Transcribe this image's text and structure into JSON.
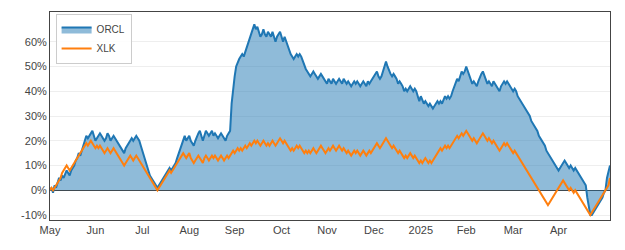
{
  "chart_data": {
    "type": "line",
    "categories": [
      "May",
      null,
      null,
      null,
      null,
      null,
      null,
      null,
      null,
      null,
      null,
      null,
      null,
      null,
      null,
      null,
      null,
      null,
      null,
      null,
      null,
      null,
      null,
      null,
      null,
      null,
      null,
      null,
      null,
      null,
      "Jun",
      null,
      null,
      null,
      null,
      null,
      null,
      null,
      null,
      null,
      null,
      null,
      null,
      null,
      null,
      null,
      null,
      null,
      null,
      null,
      null,
      null,
      null,
      null,
      null,
      null,
      null,
      null,
      null,
      null,
      null,
      "Jul",
      null,
      null,
      null,
      null,
      null,
      null,
      null,
      null,
      null,
      null,
      null,
      null,
      null,
      null,
      null,
      null,
      null,
      null,
      null,
      null,
      null,
      null,
      null,
      null,
      null,
      null,
      null,
      null,
      null,
      null,
      "Aug",
      null,
      null,
      null,
      null,
      null,
      null,
      null,
      null,
      null,
      null,
      null,
      null,
      null,
      null,
      null,
      null,
      null,
      null,
      null,
      null,
      null,
      null,
      null,
      null,
      null,
      null,
      null,
      null,
      null,
      "Sep",
      null,
      null,
      null,
      null,
      null,
      null,
      null,
      null,
      null,
      null,
      null,
      null,
      null,
      null,
      null,
      null,
      null,
      null,
      null,
      null,
      null,
      null,
      null,
      null,
      null,
      null,
      null,
      null,
      null,
      null,
      "Oct",
      null,
      null,
      null,
      null,
      null,
      null,
      null,
      null,
      null,
      null,
      null,
      null,
      null,
      null,
      null,
      null,
      null,
      null,
      null,
      null,
      null,
      null,
      null,
      null,
      null,
      null,
      null,
      null,
      null,
      "Nov",
      null,
      null,
      null,
      null,
      null,
      null,
      null,
      null,
      null,
      null,
      null,
      null,
      null,
      null,
      null,
      null,
      null,
      null,
      null,
      null,
      null,
      null,
      null,
      null,
      null,
      null,
      null,
      null,
      null,
      null,
      "Dec",
      null,
      null,
      null,
      null,
      null,
      null,
      null,
      null,
      null,
      null,
      null,
      null,
      null,
      null,
      null,
      null,
      null,
      null,
      null,
      null,
      null,
      null,
      null,
      null,
      null,
      null,
      null,
      null,
      null,
      null,
      "2025",
      null,
      null,
      null,
      null,
      null,
      null,
      null,
      null,
      null,
      null,
      null,
      null,
      null,
      null,
      null,
      null,
      null,
      null,
      null,
      null,
      null,
      null,
      null,
      null,
      null,
      null,
      null,
      null,
      null,
      "Feb",
      null,
      null,
      null,
      null,
      null,
      null,
      null,
      null,
      null,
      null,
      null,
      null,
      null,
      null,
      null,
      null,
      null,
      null,
      null,
      null,
      null,
      null,
      null,
      null,
      null,
      null,
      null,
      null,
      null,
      null,
      "Mar",
      null,
      null,
      null,
      null,
      null,
      null,
      null,
      null,
      null,
      null,
      null,
      null,
      null,
      null,
      null,
      null,
      null,
      null,
      null,
      null,
      null,
      null,
      null,
      null,
      null,
      null,
      null,
      null,
      null,
      "Apr",
      null,
      null,
      null,
      null,
      null,
      null,
      null,
      null,
      null,
      null,
      null,
      null,
      null,
      null,
      null,
      null,
      null,
      null,
      null,
      null,
      null,
      null,
      null,
      null,
      null,
      null,
      null,
      null,
      null,
      null,
      null,
      null,
      null,
      null
    ],
    "series": [
      {
        "name": "ORCL",
        "type": "area",
        "values": [
          0.0,
          0.01,
          -0.01,
          0.02,
          0.01,
          0.03,
          0.05,
          0.04,
          0.06,
          0.05,
          0.07,
          0.08,
          0.07,
          0.06,
          0.08,
          0.09,
          0.1,
          0.12,
          0.13,
          0.15,
          0.14,
          0.16,
          0.18,
          0.2,
          0.22,
          0.21,
          0.22,
          0.23,
          0.24,
          0.22,
          0.2,
          0.21,
          0.22,
          0.23,
          0.22,
          0.21,
          0.2,
          0.21,
          0.23,
          0.22,
          0.2,
          0.21,
          0.22,
          0.21,
          0.2,
          0.19,
          0.18,
          0.17,
          0.16,
          0.15,
          0.17,
          0.18,
          0.19,
          0.2,
          0.21,
          0.2,
          0.21,
          0.22,
          0.21,
          0.2,
          0.18,
          0.16,
          0.14,
          0.12,
          0.1,
          0.08,
          0.06,
          0.05,
          0.04,
          0.03,
          0.02,
          0.01,
          0.02,
          0.03,
          0.04,
          0.05,
          0.06,
          0.07,
          0.08,
          0.09,
          0.08,
          0.09,
          0.1,
          0.11,
          0.13,
          0.15,
          0.17,
          0.19,
          0.21,
          0.22,
          0.2,
          0.21,
          0.22,
          0.2,
          0.19,
          0.18,
          0.2,
          0.22,
          0.23,
          0.24,
          0.22,
          0.2,
          0.22,
          0.24,
          0.23,
          0.22,
          0.23,
          0.24,
          0.22,
          0.23,
          0.22,
          0.21,
          0.22,
          0.23,
          0.22,
          0.21,
          0.2,
          0.22,
          0.23,
          0.24,
          0.35,
          0.42,
          0.46,
          0.5,
          0.52,
          0.53,
          0.54,
          0.55,
          0.54,
          0.56,
          0.58,
          0.6,
          0.62,
          0.63,
          0.65,
          0.67,
          0.65,
          0.66,
          0.64,
          0.62,
          0.63,
          0.65,
          0.63,
          0.62,
          0.64,
          0.63,
          0.62,
          0.64,
          0.62,
          0.6,
          0.62,
          0.63,
          0.64,
          0.62,
          0.6,
          0.62,
          0.6,
          0.58,
          0.56,
          0.55,
          0.54,
          0.53,
          0.54,
          0.55,
          0.54,
          0.55,
          0.54,
          0.52,
          0.5,
          0.49,
          0.48,
          0.47,
          0.46,
          0.47,
          0.48,
          0.47,
          0.46,
          0.45,
          0.46,
          0.47,
          0.46,
          0.45,
          0.44,
          0.43,
          0.45,
          0.44,
          0.43,
          0.45,
          0.44,
          0.43,
          0.44,
          0.45,
          0.44,
          0.43,
          0.45,
          0.44,
          0.43,
          0.44,
          0.43,
          0.42,
          0.43,
          0.44,
          0.43,
          0.44,
          0.43,
          0.42,
          0.43,
          0.44,
          0.43,
          0.42,
          0.44,
          0.43,
          0.44,
          0.45,
          0.46,
          0.47,
          0.48,
          0.46,
          0.45,
          0.46,
          0.48,
          0.5,
          0.52,
          0.5,
          0.48,
          0.47,
          0.46,
          0.47,
          0.46,
          0.45,
          0.43,
          0.44,
          0.43,
          0.42,
          0.4,
          0.41,
          0.4,
          0.41,
          0.42,
          0.41,
          0.4,
          0.41,
          0.4,
          0.38,
          0.36,
          0.38,
          0.36,
          0.35,
          0.36,
          0.35,
          0.34,
          0.35,
          0.34,
          0.33,
          0.34,
          0.35,
          0.36,
          0.35,
          0.36,
          0.35,
          0.37,
          0.38,
          0.37,
          0.38,
          0.37,
          0.38,
          0.4,
          0.42,
          0.44,
          0.45,
          0.44,
          0.46,
          0.48,
          0.47,
          0.48,
          0.5,
          0.48,
          0.46,
          0.44,
          0.43,
          0.44,
          0.43,
          0.42,
          0.44,
          0.46,
          0.47,
          0.48,
          0.46,
          0.44,
          0.43,
          0.44,
          0.43,
          0.42,
          0.44,
          0.43,
          0.42,
          0.41,
          0.4,
          0.42,
          0.43,
          0.44,
          0.43,
          0.44,
          0.43,
          0.42,
          0.41,
          0.4,
          0.41,
          0.4,
          0.38,
          0.37,
          0.36,
          0.35,
          0.34,
          0.33,
          0.32,
          0.31,
          0.3,
          0.28,
          0.27,
          0.26,
          0.25,
          0.24,
          0.22,
          0.21,
          0.2,
          0.19,
          0.18,
          0.16,
          0.15,
          0.14,
          0.13,
          0.12,
          0.11,
          0.1,
          0.09,
          0.08,
          0.09,
          0.1,
          0.11,
          0.12,
          0.11,
          0.1,
          0.09,
          0.1,
          0.09,
          0.08,
          0.09,
          0.08,
          0.07,
          0.06,
          0.05,
          0.04,
          0.03,
          0.02,
          -0.03,
          -0.07,
          -0.1,
          -0.1,
          -0.09,
          -0.08,
          -0.07,
          -0.06,
          -0.05,
          -0.04,
          -0.03,
          -0.01,
          0.0,
          0.05,
          0.08,
          0.1
        ]
      },
      {
        "name": "XLK",
        "type": "line",
        "values": [
          0.0,
          0.01,
          0.0,
          0.01,
          0.02,
          0.03,
          0.04,
          0.05,
          0.07,
          0.08,
          0.09,
          0.1,
          0.09,
          0.08,
          0.09,
          0.1,
          0.11,
          0.12,
          0.13,
          0.14,
          0.15,
          0.16,
          0.17,
          0.18,
          0.19,
          0.18,
          0.19,
          0.2,
          0.19,
          0.18,
          0.17,
          0.18,
          0.17,
          0.18,
          0.17,
          0.16,
          0.15,
          0.16,
          0.17,
          0.16,
          0.15,
          0.16,
          0.17,
          0.16,
          0.15,
          0.14,
          0.13,
          0.12,
          0.11,
          0.1,
          0.11,
          0.12,
          0.13,
          0.14,
          0.13,
          0.12,
          0.13,
          0.14,
          0.13,
          0.12,
          0.11,
          0.1,
          0.09,
          0.08,
          0.07,
          0.06,
          0.05,
          0.04,
          0.03,
          0.02,
          0.01,
          0.0,
          0.01,
          0.02,
          0.03,
          0.04,
          0.05,
          0.06,
          0.07,
          0.08,
          0.07,
          0.08,
          0.09,
          0.1,
          0.11,
          0.12,
          0.13,
          0.14,
          0.15,
          0.14,
          0.13,
          0.14,
          0.15,
          0.13,
          0.12,
          0.11,
          0.12,
          0.13,
          0.14,
          0.13,
          0.12,
          0.11,
          0.13,
          0.14,
          0.13,
          0.12,
          0.13,
          0.14,
          0.13,
          0.14,
          0.13,
          0.12,
          0.13,
          0.14,
          0.13,
          0.12,
          0.13,
          0.14,
          0.13,
          0.14,
          0.15,
          0.16,
          0.15,
          0.16,
          0.17,
          0.16,
          0.17,
          0.16,
          0.17,
          0.18,
          0.17,
          0.18,
          0.19,
          0.18,
          0.19,
          0.2,
          0.19,
          0.2,
          0.19,
          0.18,
          0.19,
          0.2,
          0.19,
          0.18,
          0.19,
          0.18,
          0.19,
          0.2,
          0.19,
          0.18,
          0.19,
          0.2,
          0.21,
          0.2,
          0.19,
          0.2,
          0.19,
          0.18,
          0.17,
          0.16,
          0.17,
          0.16,
          0.17,
          0.18,
          0.17,
          0.18,
          0.17,
          0.16,
          0.15,
          0.16,
          0.15,
          0.16,
          0.15,
          0.16,
          0.17,
          0.16,
          0.15,
          0.16,
          0.17,
          0.18,
          0.17,
          0.16,
          0.15,
          0.16,
          0.17,
          0.16,
          0.17,
          0.18,
          0.17,
          0.16,
          0.17,
          0.18,
          0.17,
          0.16,
          0.17,
          0.16,
          0.15,
          0.16,
          0.15,
          0.14,
          0.15,
          0.16,
          0.15,
          0.16,
          0.15,
          0.14,
          0.15,
          0.16,
          0.15,
          0.14,
          0.15,
          0.16,
          0.15,
          0.16,
          0.17,
          0.18,
          0.19,
          0.18,
          0.17,
          0.18,
          0.19,
          0.2,
          0.21,
          0.2,
          0.19,
          0.18,
          0.17,
          0.18,
          0.17,
          0.16,
          0.15,
          0.16,
          0.15,
          0.14,
          0.13,
          0.14,
          0.13,
          0.14,
          0.15,
          0.14,
          0.13,
          0.14,
          0.13,
          0.12,
          0.11,
          0.12,
          0.11,
          0.12,
          0.13,
          0.12,
          0.11,
          0.12,
          0.11,
          0.12,
          0.13,
          0.14,
          0.15,
          0.16,
          0.17,
          0.16,
          0.17,
          0.18,
          0.17,
          0.18,
          0.17,
          0.18,
          0.19,
          0.2,
          0.21,
          0.22,
          0.21,
          0.22,
          0.23,
          0.22,
          0.23,
          0.24,
          0.23,
          0.22,
          0.21,
          0.2,
          0.21,
          0.2,
          0.19,
          0.2,
          0.21,
          0.22,
          0.23,
          0.22,
          0.21,
          0.2,
          0.21,
          0.2,
          0.19,
          0.2,
          0.19,
          0.18,
          0.17,
          0.16,
          0.17,
          0.18,
          0.19,
          0.18,
          0.19,
          0.18,
          0.17,
          0.16,
          0.15,
          0.16,
          0.15,
          0.14,
          0.13,
          0.12,
          0.11,
          0.1,
          0.09,
          0.08,
          0.07,
          0.06,
          0.05,
          0.04,
          0.03,
          0.02,
          0.01,
          0.0,
          -0.01,
          -0.02,
          -0.03,
          -0.04,
          -0.05,
          -0.06,
          -0.05,
          -0.04,
          -0.03,
          -0.02,
          -0.01,
          0.0,
          0.01,
          0.02,
          0.03,
          0.04,
          0.03,
          0.02,
          0.01,
          0.0,
          0.01,
          0.0,
          -0.01,
          0.0,
          -0.01,
          -0.02,
          -0.03,
          -0.04,
          -0.05,
          -0.06,
          -0.07,
          -0.08,
          -0.09,
          -0.1,
          -0.09,
          -0.08,
          -0.07,
          -0.06,
          -0.05,
          -0.04,
          -0.03,
          -0.02,
          -0.01,
          0.0,
          0.01,
          0.02,
          0.05
        ]
      }
    ],
    "ylim": [
      -0.12,
      0.72
    ],
    "yticks": [
      {
        "value": -0.1,
        "label": "-10%"
      },
      {
        "value": 0.0,
        "label": "0%"
      },
      {
        "value": 0.1,
        "label": "10%"
      },
      {
        "value": 0.2,
        "label": "20%"
      },
      {
        "value": 0.3,
        "label": "30%"
      },
      {
        "value": 0.4,
        "label": "40%"
      },
      {
        "value": 0.5,
        "label": "50%"
      },
      {
        "value": 0.6,
        "label": "60%"
      }
    ],
    "grid": true,
    "legend": "upper left"
  }
}
